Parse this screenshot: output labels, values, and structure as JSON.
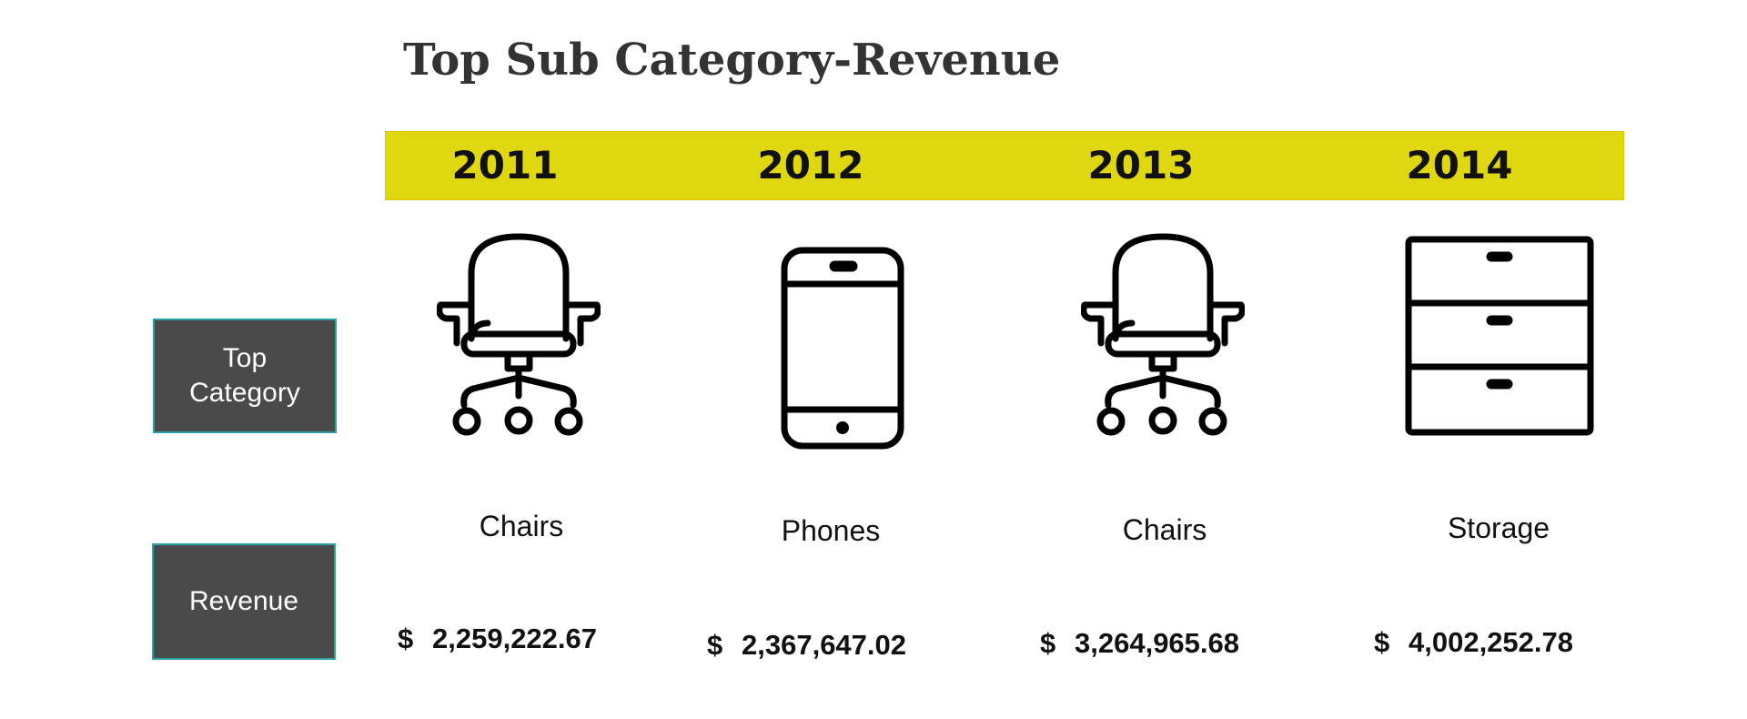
{
  "title": "Top Sub Category-Revenue",
  "row_labels": {
    "top_category_line1": "Top",
    "top_category_line2": "Category",
    "revenue": "Revenue"
  },
  "colors": {
    "year_band": "#dfd810",
    "label_box": "#4a4a4a",
    "label_border": "#2aa3a8",
    "title": "#333333"
  },
  "years": [
    {
      "year": "2011",
      "category": "Chairs",
      "icon": "office-chair-icon",
      "currency": "$",
      "revenue": "2,259,222.67"
    },
    {
      "year": "2012",
      "category": "Phones",
      "icon": "smartphone-icon",
      "currency": "$",
      "revenue": "2,367,647.02"
    },
    {
      "year": "2013",
      "category": "Chairs",
      "icon": "office-chair-icon",
      "currency": "$",
      "revenue": "3,264,965.68"
    },
    {
      "year": "2014",
      "category": "Storage",
      "icon": "drawer-cabinet-icon",
      "currency": "$",
      "revenue": "4,002,252.78"
    }
  ]
}
